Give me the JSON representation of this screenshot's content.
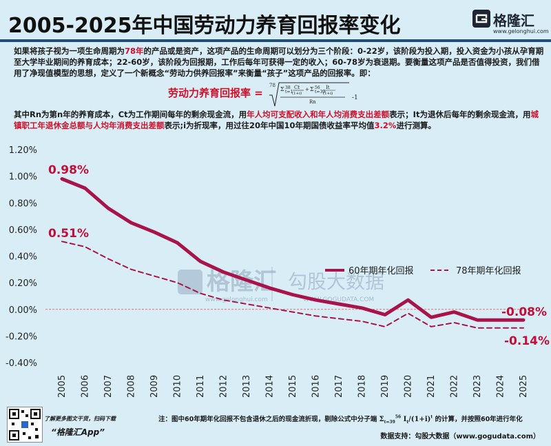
{
  "header": {
    "title": "2005-2025年中国劳动力养育回报率变化",
    "logo_name": "格隆汇",
    "logo_url": "www.gelonghui.com"
  },
  "intro": {
    "p1_a": "如果将孩子视为一项生命周期为",
    "p1_red": "78年",
    "p1_b": "的产品或是资产，这项产品的生命周期可以划分为三个阶段：0-22岁，该阶段为投入期，投入资金为小孩从孕育期至大学毕业期间的养育成本；22-60岁，该阶段为回报期，工作后每年可获得一定的收入；60-78岁为衰退期。要衡量这项产品是否值得投资，我们借用了净现值模型的思想，定义了一个新概念“劳动力供养回报率”来衡量“孩子”这项产品的回报率。即：",
    "formula_label": "劳动力养育回报率 =",
    "p2_a": "其中Rn为第n年的养育成本，Ct为工作期间每年的剩余现金流，用",
    "p2_red1": "年人均可支配收入和年人均消费支出差额",
    "p2_b": "表示；It为退休后每年的剩余现金流，用",
    "p2_red2": "城镇职工年退休金总额与人均年消费支出差额",
    "p2_c": "表示;i为折现率，用过往20年中国10年期国债收益率平均值",
    "p2_red3": "3.2%",
    "p2_d": "进行测算。"
  },
  "chart_data": {
    "type": "line",
    "x": [
      "2005",
      "2006",
      "2007",
      "2008",
      "2009",
      "2010",
      "2011",
      "2012",
      "2013",
      "2014",
      "2015",
      "2016",
      "2017",
      "2018",
      "2019",
      "2020",
      "2021",
      "2022",
      "2023",
      "2024",
      "2025"
    ],
    "ylim": [
      -0.4,
      1.2
    ],
    "yticks": [
      "1.20%",
      "1.00%",
      "0.80%",
      "0.60%",
      "0.40%",
      "0.20%",
      "0.00%",
      "-0.20%",
      "-0.40%"
    ],
    "series": [
      {
        "name": "60年期年化回报",
        "style": "solid",
        "color": "#a8144a",
        "values": [
          0.98,
          0.91,
          0.76,
          0.65,
          0.58,
          0.5,
          0.36,
          0.28,
          0.22,
          0.16,
          0.11,
          0.07,
          0.04,
          0.01,
          -0.04,
          0.07,
          -0.06,
          -0.02,
          -0.08,
          -0.08,
          -0.08
        ]
      },
      {
        "name": "78年期年化回报",
        "style": "dashed",
        "color": "#a8144a",
        "values": [
          0.51,
          0.47,
          0.38,
          0.3,
          0.25,
          0.2,
          0.12,
          0.07,
          0.04,
          0.01,
          -0.02,
          -0.05,
          -0.07,
          -0.09,
          -0.13,
          -0.03,
          -0.13,
          -0.1,
          -0.14,
          -0.14,
          -0.14
        ]
      }
    ],
    "annotations": [
      "0.98%",
      "0.51%",
      "-0.08%",
      "-0.14%"
    ],
    "legend": "top-right"
  },
  "watermark": {
    "brand": "格隆汇",
    "brand_url": "www.gelonghui.com",
    "data_brand": "勾股大数据",
    "data_url": "WWW.GOGUDATA.COM"
  },
  "footer": {
    "qr_line1": "了解更多图文干货，扫码下载",
    "qr_line2": "“格隆汇App”",
    "note": "注：图中60年期年化回报不包含退休之后的现金流折现，剔除公式中分子端",
    "note_formula": "Σ",
    "note_b": "的计算，并按照60年进行年化",
    "source": "数据支持：勾股大数据（www.gogudata.com）"
  },
  "colors": {
    "background": "#d9edf6",
    "series": "#a8144a",
    "highlight": "#d0102a",
    "zero_line": "#e07070"
  }
}
